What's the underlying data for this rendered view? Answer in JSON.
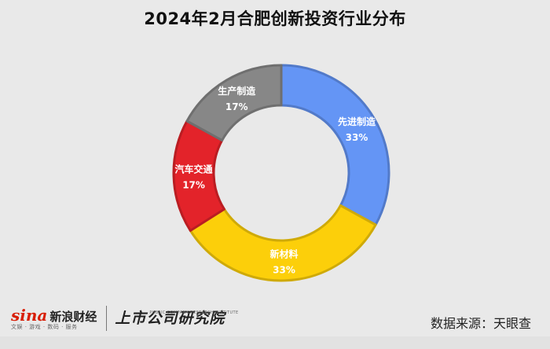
{
  "chart_data": {
    "type": "pie",
    "donut": true,
    "title": "2024年2月合肥创新投资行业分布",
    "slices": [
      {
        "label": "先进制造",
        "value": 33,
        "value_label": "33%",
        "color": "#6495f5"
      },
      {
        "label": "新材料",
        "value": 33,
        "value_label": "33%",
        "color": "#fccf0a"
      },
      {
        "label": "汽车交通",
        "value": 17,
        "value_label": "17%",
        "color": "#e3232a"
      },
      {
        "label": "生产制造",
        "value": 17,
        "value_label": "17%",
        "color": "#878787"
      }
    ]
  },
  "footer": {
    "sina_logo_text": "sina",
    "sina_name": "新浪财经",
    "sina_tagline": "文娱 · 游戏 · 数码 · 服务",
    "research_name": "上市公司研究院",
    "research_en": "PUBLIC COMPANY RESEARCH INSTITUTE",
    "source": "数据来源：天眼查"
  }
}
